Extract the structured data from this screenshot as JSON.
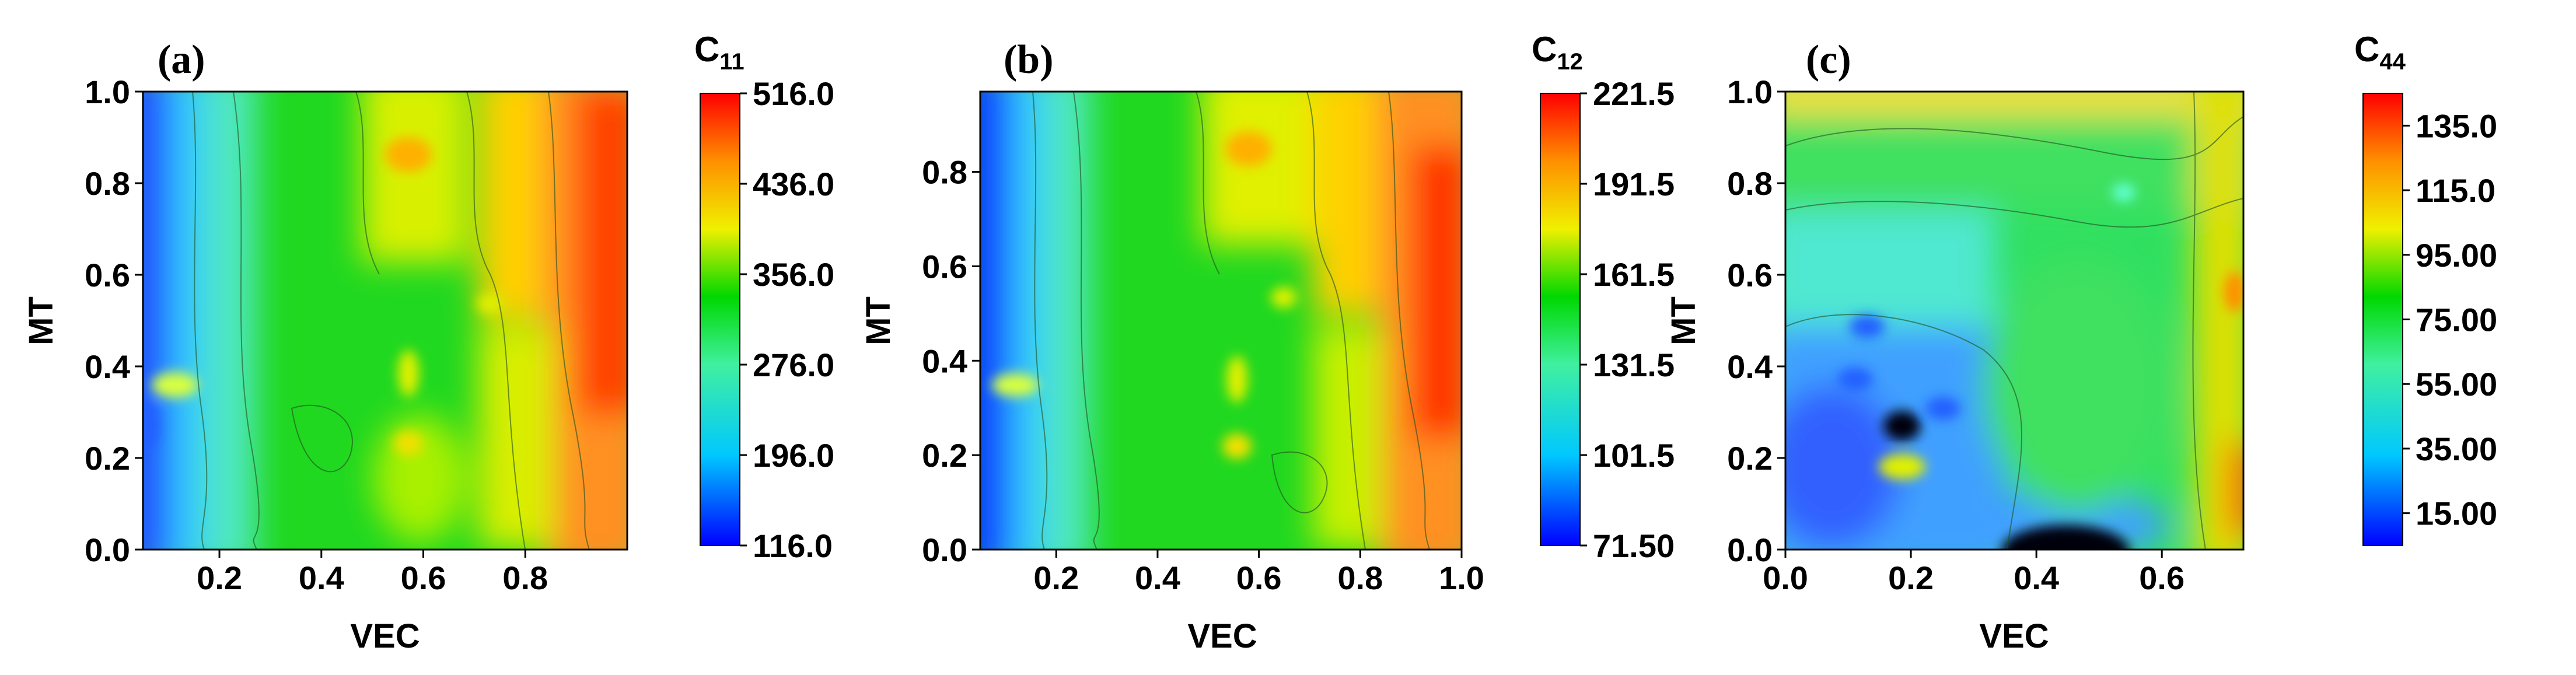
{
  "chart_data": [
    {
      "type": "heatmap",
      "panel_label": "(a)",
      "xlabel": "VEC",
      "ylabel": "MT",
      "xlim": [
        0.05,
        1.0
      ],
      "ylim": [
        0.0,
        1.0
      ],
      "x_ticks": [
        "0.2",
        "0.4",
        "0.6",
        "0.8"
      ],
      "x_tick_values": [
        0.2,
        0.4,
        0.6,
        0.8
      ],
      "y_ticks": [
        "0.0",
        "0.2",
        "0.4",
        "0.6",
        "0.8",
        "1.0"
      ],
      "y_tick_values": [
        0.0,
        0.2,
        0.4,
        0.6,
        0.8,
        1.0
      ],
      "colorbar": {
        "title_main": "C",
        "title_sub": "11",
        "min": 116.0,
        "max": 516.0,
        "ticks": [
          "116.0",
          "196.0",
          "276.0",
          "356.0",
          "436.0",
          "516.0"
        ],
        "tick_values": [
          116.0,
          196.0,
          276.0,
          356.0,
          436.0,
          516.0
        ]
      }
    },
    {
      "type": "heatmap",
      "panel_label": "(b)",
      "xlabel": "VEC",
      "ylabel": "MT",
      "xlim": [
        0.05,
        1.0
      ],
      "ylim": [
        0.0,
        0.97
      ],
      "x_ticks": [
        "0.2",
        "0.4",
        "0.6",
        "0.8",
        "1.0"
      ],
      "x_tick_values": [
        0.2,
        0.4,
        0.6,
        0.8,
        1.0
      ],
      "y_ticks": [
        "0.0",
        "0.2",
        "0.4",
        "0.6",
        "0.8"
      ],
      "y_tick_values": [
        0.0,
        0.2,
        0.4,
        0.6,
        0.8
      ],
      "colorbar": {
        "title_main": "C",
        "title_sub": "12",
        "min": 71.5,
        "max": 221.5,
        "ticks": [
          "71.50",
          "101.5",
          "131.5",
          "161.5",
          "191.5",
          "221.5"
        ],
        "tick_values": [
          71.5,
          101.5,
          131.5,
          161.5,
          191.5,
          221.5
        ]
      }
    },
    {
      "type": "heatmap",
      "panel_label": "(c)",
      "xlabel": "VEC",
      "ylabel": "MT",
      "xlim": [
        0.0,
        0.73
      ],
      "ylim": [
        0.0,
        1.0
      ],
      "x_ticks": [
        "0.0",
        "0.2",
        "0.4",
        "0.6"
      ],
      "x_tick_values": [
        0.0,
        0.2,
        0.4,
        0.6
      ],
      "y_ticks": [
        "0.0",
        "0.2",
        "0.4",
        "0.6",
        "0.8",
        "1.0"
      ],
      "y_tick_values": [
        0.0,
        0.2,
        0.4,
        0.6,
        0.8,
        1.0
      ],
      "colorbar": {
        "title_main": "C",
        "title_sub": "44",
        "min": 5.0,
        "max": 145.0,
        "ticks": [
          "15.00",
          "35.00",
          "55.00",
          "75.00",
          "95.00",
          "115.0",
          "135.0"
        ],
        "tick_values": [
          15.0,
          35.0,
          55.0,
          75.0,
          95.0,
          115.0,
          135.0
        ]
      }
    }
  ]
}
